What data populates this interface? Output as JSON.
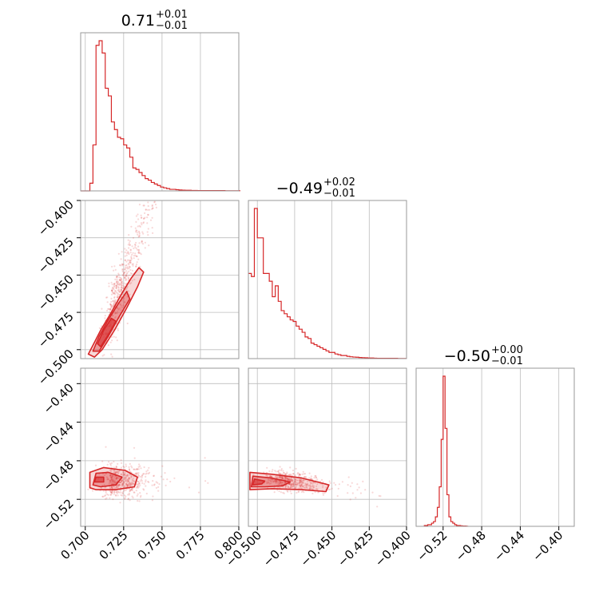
{
  "chart_data": {
    "type": "corner",
    "colors": {
      "line": "#d62728",
      "fill": "#d62728",
      "grid": "#bdbdbd",
      "frame": "#999999"
    },
    "grid": true,
    "parameters": [
      {
        "title_main": "0.71",
        "title_plus": "+0.01",
        "title_minus": "−0.01",
        "range": [
          0.697,
          0.8
        ]
      },
      {
        "title_main": "−0.49",
        "title_plus": "+0.02",
        "title_minus": "−0.01",
        "range": [
          -0.506,
          -0.4
        ]
      },
      {
        "title_main": "−0.50",
        "title_plus": "+0.00",
        "title_minus": "−0.01",
        "range": [
          -0.548,
          -0.384
        ]
      }
    ],
    "ticks": [
      {
        "values": [
          0.7,
          0.725,
          0.75,
          0.775,
          0.8
        ],
        "labels": [
          "0.700",
          "0.725",
          "0.750",
          "0.775",
          "0.800"
        ]
      },
      {
        "values": [
          -0.5,
          -0.475,
          -0.45,
          -0.425,
          -0.4
        ],
        "labels": [
          "−0.500",
          "−0.475",
          "−0.450",
          "−0.425",
          "−0.400"
        ]
      },
      {
        "values": [
          -0.52,
          -0.48,
          -0.44,
          -0.4
        ],
        "labels": [
          "−0.52",
          "−0.48",
          "−0.44",
          "−0.40"
        ]
      }
    ],
    "histograms": [
      {
        "param": 0,
        "bin_start": 0.697,
        "bin_width": 0.002,
        "counts": [
          0,
          0,
          0,
          0.05,
          0.3,
          0.95,
          0.98,
          0.9,
          0.67,
          0.62,
          0.45,
          0.4,
          0.35,
          0.34,
          0.3,
          0.28,
          0.22,
          0.15,
          0.14,
          0.12,
          0.1,
          0.08,
          0.07,
          0.055,
          0.045,
          0.035,
          0.025,
          0.02,
          0.015,
          0.01,
          0.01,
          0.008,
          0.006,
          0.005,
          0.004,
          0.004,
          0.003,
          0.003,
          0.002,
          0.002,
          0.002,
          0.002,
          0.002,
          0.002,
          0.002,
          0.002,
          0.002,
          0.001,
          0.001,
          0.001,
          0.001,
          0.001
        ]
      },
      {
        "param": 1,
        "bin_start": -0.506,
        "bin_width": 0.002,
        "counts": [
          0.55,
          0.53,
          0.97,
          0.78,
          0.78,
          0.55,
          0.55,
          0.5,
          0.4,
          0.47,
          0.37,
          0.31,
          0.29,
          0.27,
          0.25,
          0.24,
          0.21,
          0.19,
          0.17,
          0.14,
          0.13,
          0.1,
          0.09,
          0.08,
          0.07,
          0.06,
          0.05,
          0.04,
          0.04,
          0.03,
          0.025,
          0.02,
          0.02,
          0.015,
          0.012,
          0.01,
          0.009,
          0.007,
          0.006,
          0.005,
          0.004,
          0.004,
          0.003,
          0.002,
          0.002,
          0.002,
          0.002,
          0.002,
          0.002,
          0.002,
          0.001,
          0.001,
          0.001
        ]
      },
      {
        "param": 2,
        "bin_start": -0.54,
        "bin_width": 0.002,
        "counts": [
          0.005,
          0.005,
          0.01,
          0.01,
          0.02,
          0.03,
          0.06,
          0.12,
          0.25,
          0.55,
          0.95,
          0.62,
          0.2,
          0.06,
          0.03,
          0.02,
          0.01,
          0.005,
          0.005,
          0.003,
          0.002,
          0.002,
          0.001
        ]
      }
    ],
    "scatter_2d": [
      {
        "x_param": 0,
        "y_param": 1,
        "n_points": 520,
        "trend": {
          "x_mean": 0.716,
          "x_sd": 0.012,
          "x_min": 0.7,
          "x_max": 0.75,
          "slope": 2.75,
          "intercept": -2.447,
          "resid_sd": 0.01
        },
        "contours": [
          [
            [
              0.702,
              -0.503
            ],
            [
              0.705,
              -0.497
            ],
            [
              0.71,
              -0.487
            ],
            [
              0.717,
              -0.475
            ],
            [
              0.724,
              -0.462
            ],
            [
              0.73,
              -0.452
            ],
            [
              0.735,
              -0.445
            ],
            [
              0.738,
              -0.448
            ],
            [
              0.734,
              -0.458
            ],
            [
              0.727,
              -0.472
            ],
            [
              0.719,
              -0.487
            ],
            [
              0.711,
              -0.5
            ],
            [
              0.706,
              -0.505
            ]
          ],
          [
            [
              0.705,
              -0.501
            ],
            [
              0.709,
              -0.491
            ],
            [
              0.715,
              -0.48
            ],
            [
              0.721,
              -0.47
            ],
            [
              0.727,
              -0.461
            ],
            [
              0.729,
              -0.466
            ],
            [
              0.722,
              -0.478
            ],
            [
              0.715,
              -0.491
            ],
            [
              0.709,
              -0.501
            ]
          ],
          [
            [
              0.708,
              -0.496
            ],
            [
              0.712,
              -0.487
            ],
            [
              0.717,
              -0.479
            ],
            [
              0.72,
              -0.481
            ],
            [
              0.715,
              -0.49
            ],
            [
              0.71,
              -0.498
            ]
          ]
        ]
      },
      {
        "x_param": 0,
        "y_param": 2,
        "n_points": 520,
        "trend": {
          "x_mean": 0.716,
          "x_sd": 0.012,
          "x_min": 0.7,
          "x_max": 0.78,
          "slope": 0.0,
          "intercept": -0.501,
          "resid_sd": 0.009
        },
        "contours": [
          [
            [
              0.703,
              -0.508
            ],
            [
              0.703,
              -0.492
            ],
            [
              0.712,
              -0.487
            ],
            [
              0.726,
              -0.49
            ],
            [
              0.734,
              -0.497
            ],
            [
              0.732,
              -0.507
            ],
            [
              0.72,
              -0.51
            ],
            [
              0.707,
              -0.51
            ]
          ],
          [
            [
              0.705,
              -0.505
            ],
            [
              0.707,
              -0.493
            ],
            [
              0.715,
              -0.492
            ],
            [
              0.724,
              -0.497
            ],
            [
              0.72,
              -0.505
            ],
            [
              0.71,
              -0.507
            ]
          ],
          [
            [
              0.706,
              -0.502
            ],
            [
              0.707,
              -0.497
            ],
            [
              0.712,
              -0.497
            ],
            [
              0.712,
              -0.502
            ]
          ]
        ]
      },
      {
        "x_param": 1,
        "y_param": 2,
        "n_points": 520,
        "trend": {
          "x_mean": -0.488,
          "x_sd": 0.016,
          "x_min": -0.505,
          "x_max": -0.415,
          "slope": -0.2,
          "intercept": -0.597,
          "resid_sd": 0.005
        },
        "contours": [
          [
            [
              -0.505,
              -0.51
            ],
            [
              -0.505,
              -0.492
            ],
            [
              -0.49,
              -0.494
            ],
            [
              -0.47,
              -0.498
            ],
            [
              -0.452,
              -0.505
            ],
            [
              -0.454,
              -0.512
            ],
            [
              -0.47,
              -0.51
            ],
            [
              -0.49,
              -0.509
            ]
          ],
          [
            [
              -0.504,
              -0.507
            ],
            [
              -0.503,
              -0.496
            ],
            [
              -0.49,
              -0.498
            ],
            [
              -0.478,
              -0.502
            ],
            [
              -0.483,
              -0.506
            ],
            [
              -0.495,
              -0.507
            ]
          ],
          [
            [
              -0.503,
              -0.505
            ],
            [
              -0.502,
              -0.499
            ],
            [
              -0.495,
              -0.501
            ],
            [
              -0.497,
              -0.504
            ]
          ]
        ]
      }
    ]
  }
}
